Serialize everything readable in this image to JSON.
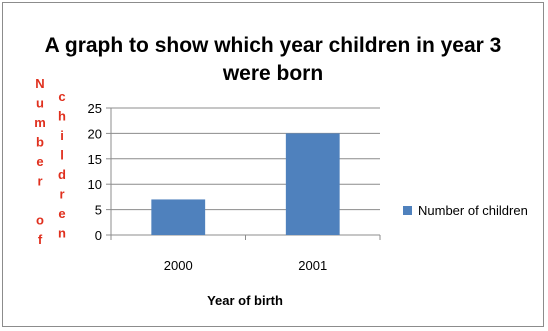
{
  "chart_data": {
    "type": "bar",
    "title_lines": [
      "A graph to show which year children in year 3",
      "were born"
    ],
    "categories": [
      "2000",
      "2001"
    ],
    "series": [
      {
        "name": "Number of children",
        "values": [
          7,
          20
        ]
      }
    ],
    "xlabel": "Year of birth",
    "ylabel_columns": [
      "Number of",
      "children"
    ],
    "ylim": [
      0,
      25
    ],
    "yticks": [
      "0",
      "5",
      "10",
      "15",
      "20",
      "25"
    ],
    "grid": true,
    "legend_position": "right",
    "colors": {
      "bar": "#4f81bd",
      "ylabel": "#e0301e",
      "grid": "#8c8c8c"
    }
  }
}
